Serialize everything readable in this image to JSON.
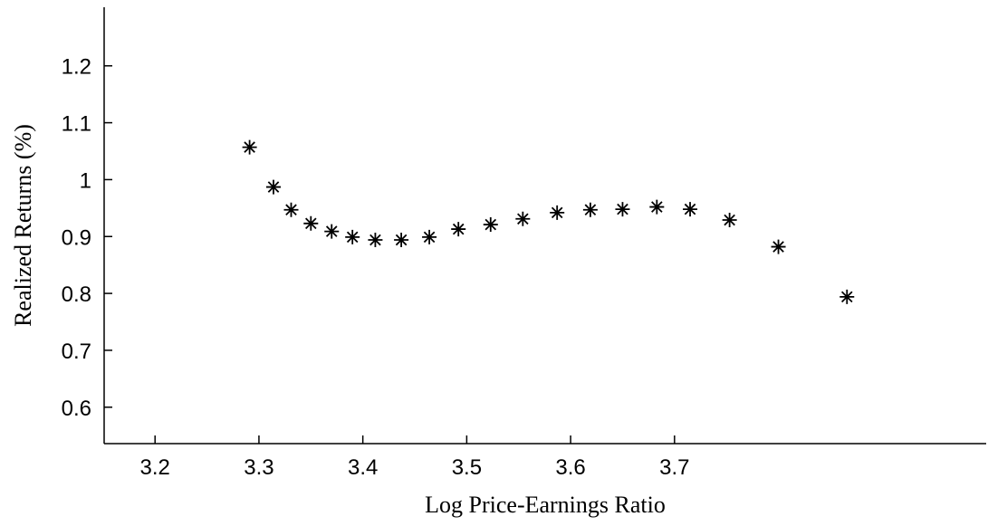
{
  "chart_data": {
    "type": "scatter",
    "x_label": "Log Price-Earnings Ratio",
    "y_label": "Realized Returns (%)",
    "x": [
      3.291,
      3.314,
      3.331,
      3.35,
      3.37,
      3.39,
      3.412,
      3.437,
      3.464,
      3.492,
      3.523,
      3.554,
      3.587,
      3.619,
      3.65,
      3.683,
      3.715,
      3.753,
      3.8,
      3.866
    ],
    "values": [
      1.057,
      0.987,
      0.947,
      0.923,
      0.909,
      0.899,
      0.894,
      0.894,
      0.899,
      0.913,
      0.921,
      0.931,
      0.942,
      0.947,
      0.948,
      0.952,
      0.948,
      0.929,
      0.882,
      0.794
    ],
    "color": "#000000",
    "xlim": [
      3.151,
      4.0
    ],
    "xticks": [
      3.2,
      3.3,
      3.4,
      3.5,
      3.6,
      3.7
    ],
    "ylim": [
      0.536,
      1.303
    ],
    "yticks": [
      0.6,
      0.7,
      0.8,
      0.9,
      1,
      1.1,
      1.2
    ],
    "grid": false
  }
}
